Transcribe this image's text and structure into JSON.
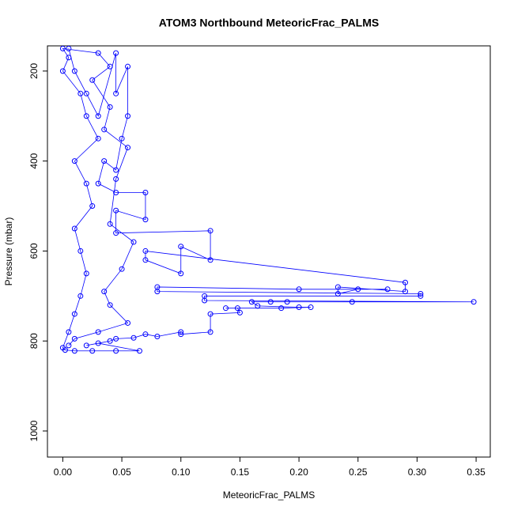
{
  "chart_data": {
    "type": "scatter",
    "title": "ATOM3 Northbound MeteoricFrac_PALMS",
    "x_label": "MeteoricFrac_PALMS",
    "y_label": "Pressure (mbar)",
    "color": "#0000ff",
    "connect": true,
    "y_inverted": true,
    "xlim": [
      -0.013,
      0.362
    ],
    "ylim": [
      144,
      1058
    ],
    "xticks": [
      {
        "value": 0,
        "label": "0.00"
      },
      {
        "value": 0.05,
        "label": "0.05"
      },
      {
        "value": 0.1,
        "label": "0.10"
      },
      {
        "value": 0.15,
        "label": "0.15"
      },
      {
        "value": 0.2,
        "label": "0.20"
      },
      {
        "value": 0.25,
        "label": "0.25"
      },
      {
        "value": 0.3,
        "label": "0.30"
      },
      {
        "value": 0.35,
        "label": "0.35"
      }
    ],
    "yticks": [
      200,
      400,
      600,
      800,
      1000
    ],
    "x": [
      0.005,
      0.01,
      0.02,
      0.03,
      0.045,
      0.045,
      0.055,
      0.055,
      0.05,
      0.045,
      0.035,
      0.03,
      0.045,
      0.07,
      0.07,
      0.045,
      0.045,
      0.125,
      0.125,
      0.1,
      0.1,
      0.07,
      0.07,
      0.29,
      0.29,
      0.233,
      0.233,
      0.25,
      0.275,
      0.2,
      0.08,
      0.08,
      0.303,
      0.303,
      0.12,
      0.12,
      0.348,
      0.245,
      0.19,
      0.176,
      0.16,
      0.165,
      0.2,
      0.21,
      0.185,
      0.138,
      0.148,
      0.15,
      0.125,
      0.125,
      0.1,
      0.1,
      0.08,
      0.07,
      0.06,
      0.045,
      0.04,
      0.02,
      0.03,
      0.065,
      0.045,
      0.025,
      0.01,
      0.002,
      0.0,
      0.005,
      0.01,
      0.015,
      0.02,
      0.015,
      0.01,
      0.025,
      0.02,
      0.01,
      0.03,
      0.02,
      0.015,
      0.0,
      0.005,
      0.0,
      0.03,
      0.04,
      0.025,
      0.04,
      0.035,
      0.055,
      0.045,
      0.04,
      0.06,
      0.05,
      0.035,
      0.04,
      0.055,
      0.03,
      0.01,
      0.005
    ],
    "values": [
      150,
      200,
      250,
      300,
      160,
      250,
      190,
      300,
      350,
      420,
      400,
      450,
      470,
      470,
      530,
      510,
      560,
      555,
      620,
      590,
      650,
      620,
      600,
      670,
      690,
      680,
      695,
      685,
      685,
      685,
      680,
      690,
      695,
      700,
      700,
      710,
      713,
      713,
      713,
      713,
      713,
      722,
      725,
      725,
      727,
      727,
      727,
      737,
      740,
      780,
      785,
      780,
      790,
      785,
      793,
      795,
      800,
      810,
      805,
      822,
      822,
      822,
      822,
      820,
      815,
      780,
      740,
      700,
      650,
      600,
      550,
      500,
      450,
      400,
      350,
      300,
      250,
      200,
      170,
      150,
      160,
      190,
      220,
      280,
      330,
      370,
      440,
      540,
      580,
      640,
      690,
      720,
      760,
      780,
      795,
      810
    ]
  }
}
